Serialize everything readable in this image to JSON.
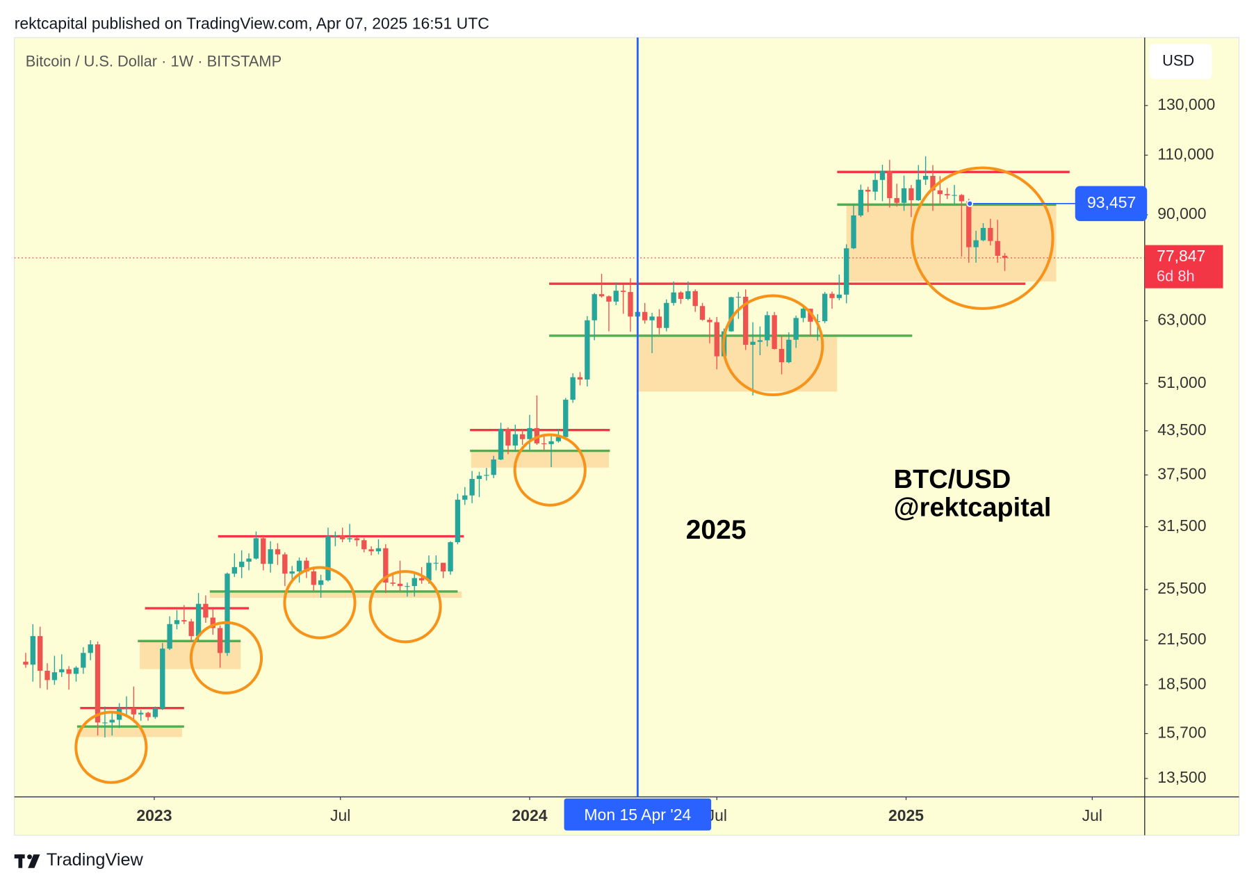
{
  "header": "rektcapital published on TradingView.com, Apr 07, 2025 16:51 UTC",
  "brand": "TradingView",
  "chart_data": {
    "type": "candlestick",
    "title": "Bitcoin / U.S. Dollar · 1W · BITSTAMP",
    "currency": "USD",
    "log_scale": true,
    "grid": false,
    "up_color": "#26a69a",
    "down_color": "#ef5350",
    "x": [
      "2022-08-29",
      "2022-09-05",
      "2022-09-12",
      "2022-09-19",
      "2022-09-26",
      "2022-10-03",
      "2022-10-10",
      "2022-10-17",
      "2022-10-24",
      "2022-10-31",
      "2022-11-07",
      "2022-11-14",
      "2022-11-21",
      "2022-11-28",
      "2022-12-05",
      "2022-12-12",
      "2022-12-19",
      "2022-12-26",
      "2023-01-02",
      "2023-01-09",
      "2023-01-16",
      "2023-01-23",
      "2023-01-30",
      "2023-02-06",
      "2023-02-13",
      "2023-02-20",
      "2023-02-27",
      "2023-03-06",
      "2023-03-13",
      "2023-03-20",
      "2023-03-27",
      "2023-04-03",
      "2023-04-10",
      "2023-04-17",
      "2023-04-24",
      "2023-05-01",
      "2023-05-08",
      "2023-05-15",
      "2023-05-22",
      "2023-05-29",
      "2023-06-05",
      "2023-06-12",
      "2023-06-19",
      "2023-06-26",
      "2023-07-03",
      "2023-07-10",
      "2023-07-17",
      "2023-07-24",
      "2023-07-31",
      "2023-08-07",
      "2023-08-14",
      "2023-08-21",
      "2023-08-28",
      "2023-09-04",
      "2023-09-11",
      "2023-09-18",
      "2023-09-25",
      "2023-10-02",
      "2023-10-09",
      "2023-10-16",
      "2023-10-23",
      "2023-10-30",
      "2023-11-06",
      "2023-11-13",
      "2023-11-20",
      "2023-11-27",
      "2023-12-04",
      "2023-12-11",
      "2023-12-18",
      "2023-12-25",
      "2024-01-01",
      "2024-01-08",
      "2024-01-15",
      "2024-01-22",
      "2024-01-29",
      "2024-02-05",
      "2024-02-12",
      "2024-02-19",
      "2024-02-26",
      "2024-03-04",
      "2024-03-11",
      "2024-03-18",
      "2024-03-25",
      "2024-04-01",
      "2024-04-08",
      "2024-04-15",
      "2024-04-22",
      "2024-04-29",
      "2024-05-06",
      "2024-05-13",
      "2024-05-20",
      "2024-05-27",
      "2024-06-03",
      "2024-06-10",
      "2024-06-17",
      "2024-06-24",
      "2024-07-01",
      "2024-07-08",
      "2024-07-15",
      "2024-07-22",
      "2024-07-29",
      "2024-08-05",
      "2024-08-12",
      "2024-08-19",
      "2024-08-26",
      "2024-09-02",
      "2024-09-09",
      "2024-09-16",
      "2024-09-23",
      "2024-09-30",
      "2024-10-07",
      "2024-10-14",
      "2024-10-21",
      "2024-10-28",
      "2024-11-04",
      "2024-11-11",
      "2024-11-18",
      "2024-11-25",
      "2024-12-02",
      "2024-12-09",
      "2024-12-16",
      "2024-12-23",
      "2024-12-30",
      "2025-01-06",
      "2025-01-13",
      "2025-01-20",
      "2025-01-27",
      "2025-02-03",
      "2025-02-10",
      "2025-02-17",
      "2025-02-24",
      "2025-03-03",
      "2025-03-10",
      "2025-03-17",
      "2025-03-24",
      "2025-03-31",
      "2025-04-07"
    ],
    "open": [
      20000,
      19800,
      21800,
      19400,
      18800,
      19300,
      19500,
      19200,
      19600,
      20600,
      21200,
      16300,
      16300,
      16450,
      17100,
      17100,
      16750,
      16840,
      16600,
      17100,
      20900,
      22700,
      23000,
      22900,
      21800,
      24300,
      23200,
      22400,
      20600,
      26900,
      27500,
      28000,
      28300,
      30300,
      27800,
      29200,
      28700,
      26900,
      27100,
      28100,
      27100,
      25900,
      26300,
      30500,
      30600,
      30200,
      30300,
      30100,
      29200,
      29000,
      29300,
      26100,
      26000,
      25800,
      25800,
      26500,
      26300,
      27900,
      27900,
      27100,
      29900,
      34500,
      35000,
      37000,
      37400,
      37500,
      39500,
      43800,
      41400,
      43000,
      42300,
      43900,
      41700,
      41600,
      42000,
      42600,
      48300,
      52100,
      51700,
      63100,
      68900,
      68400,
      67200,
      69700,
      69400,
      63900,
      64900,
      63100,
      63900,
      61500,
      66900,
      69300,
      67800,
      69600,
      66200,
      63200,
      62700,
      55900,
      60800,
      68200,
      68300,
      58100,
      58700,
      59000,
      64200,
      57300,
      54800,
      59100,
      63600,
      65600,
      62800,
      62900,
      69000,
      68000,
      68800,
      80400,
      89800,
      97900,
      97300,
      101200,
      104400,
      95200,
      93700,
      98400,
      94500,
      101300,
      102600,
      97700,
      96500,
      96100,
      96200,
      94200,
      80700,
      82600,
      86100,
      82400,
      78400
    ],
    "high": [
      20600,
      22700,
      22500,
      19900,
      20400,
      20500,
      19700,
      19700,
      21000,
      21500,
      21400,
      17200,
      16800,
      17400,
      17800,
      18400,
      17000,
      16900,
      17200,
      21300,
      23300,
      23800,
      24200,
      23100,
      25200,
      25000,
      23900,
      22600,
      27000,
      28800,
      29100,
      28800,
      31000,
      30500,
      30000,
      29800,
      28900,
      27600,
      28400,
      28400,
      27400,
      26800,
      31400,
      31000,
      31400,
      31800,
      30400,
      30300,
      29500,
      30200,
      29700,
      26800,
      28100,
      26100,
      27000,
      27500,
      28600,
      28600,
      27900,
      30000,
      35200,
      36000,
      38000,
      37900,
      38400,
      40000,
      44700,
      44000,
      44400,
      43800,
      45900,
      49000,
      43000,
      42800,
      43700,
      48600,
      52800,
      53000,
      64000,
      69200,
      73800,
      68600,
      71700,
      71200,
      72700,
      67200,
      66900,
      64700,
      65500,
      67700,
      71900,
      69600,
      71900,
      70000,
      66900,
      63700,
      63800,
      61400,
      68300,
      69400,
      70000,
      62700,
      61800,
      65000,
      64900,
      59800,
      60600,
      64100,
      66500,
      65600,
      64400,
      69400,
      69500,
      73600,
      81500,
      93400,
      99600,
      98900,
      104000,
      106500,
      108300,
      99900,
      102700,
      99500,
      106400,
      109600,
      106400,
      102500,
      98500,
      99500,
      96500,
      95000,
      85300,
      87500,
      88800,
      88500,
      79100
    ],
    "low": [
      19600,
      18700,
      18300,
      18200,
      18500,
      19000,
      18200,
      18700,
      19200,
      20100,
      15600,
      15500,
      15600,
      16000,
      16700,
      16300,
      16400,
      16400,
      16500,
      17000,
      20800,
      22300,
      22700,
      21400,
      21500,
      22800,
      21900,
      19600,
      20400,
      26600,
      26500,
      27200,
      28200,
      27200,
      27000,
      27700,
      25800,
      26300,
      26100,
      26500,
      25400,
      24800,
      26200,
      29500,
      29900,
      29900,
      29500,
      28900,
      28600,
      28700,
      25200,
      25800,
      25400,
      24900,
      24900,
      26000,
      26000,
      27200,
      26500,
      26800,
      29700,
      33900,
      34100,
      34800,
      36800,
      37100,
      39400,
      40200,
      40600,
      41500,
      40800,
      41500,
      40700,
      38500,
      41800,
      42300,
      47800,
      50700,
      50500,
      59000,
      68100,
      60800,
      66400,
      64500,
      60700,
      59600,
      62400,
      56500,
      60200,
      60800,
      66300,
      66700,
      67500,
      64900,
      63000,
      58400,
      53500,
      55700,
      60700,
      63400,
      57100,
      49000,
      56100,
      57800,
      57200,
      52600,
      54600,
      57500,
      62700,
      59800,
      58900,
      62500,
      65600,
      67500,
      66800,
      80200,
      89300,
      90800,
      94500,
      94200,
      92200,
      92500,
      91200,
      89300,
      94300,
      99500,
      91200,
      93400,
      94900,
      93400,
      78200,
      76600,
      76600,
      82300,
      81200,
      76600,
      74500
    ],
    "close": [
      19800,
      21800,
      19400,
      18800,
      19300,
      19500,
      19200,
      19600,
      20600,
      21200,
      16300,
      16300,
      16450,
      17100,
      17100,
      16750,
      16840,
      16600,
      17100,
      20900,
      22700,
      23000,
      22900,
      21800,
      24300,
      23200,
      22400,
      20600,
      26900,
      27500,
      28000,
      28300,
      30300,
      27800,
      29200,
      28700,
      26900,
      27100,
      28100,
      27100,
      25900,
      26300,
      30500,
      30600,
      30200,
      30300,
      30100,
      29200,
      29000,
      29300,
      26100,
      26000,
      25800,
      25800,
      26500,
      26300,
      27900,
      27900,
      27100,
      29900,
      34500,
      35000,
      37000,
      37400,
      37500,
      39500,
      43800,
      41400,
      43000,
      42300,
      43900,
      41700,
      41600,
      42000,
      42600,
      48300,
      52100,
      51700,
      63100,
      68900,
      68400,
      67200,
      69700,
      69400,
      63900,
      64900,
      63100,
      63900,
      61500,
      66900,
      69300,
      67800,
      69600,
      66200,
      63200,
      62700,
      55900,
      60800,
      68200,
      68300,
      58100,
      58700,
      59000,
      64200,
      57300,
      54800,
      59100,
      63600,
      65600,
      62800,
      62900,
      69000,
      68000,
      68800,
      80400,
      89800,
      97900,
      97300,
      101200,
      104400,
      95200,
      93700,
      98400,
      94500,
      101300,
      102600,
      97700,
      96500,
      96100,
      96200,
      94200,
      80700,
      82600,
      86100,
      82400,
      78400,
      77847
    ],
    "xlim": [
      "2022-08-18",
      "2025-08-21"
    ],
    "xticks": [
      {
        "value": "2023-01-01",
        "label": "2023"
      },
      {
        "value": "2023-07-01",
        "label": "Jul"
      },
      {
        "value": "2024-01-01",
        "label": "2024"
      },
      {
        "value": "2024-07-01",
        "label": "Jul"
      },
      {
        "value": "2025-01-01",
        "label": "2025"
      },
      {
        "value": "2025-07-01",
        "label": "Jul"
      }
    ],
    "ylim": [
      12690,
      163400
    ],
    "yticks": [
      {
        "value": 13500,
        "label": "13,500"
      },
      {
        "value": 15700,
        "label": "15,700"
      },
      {
        "value": 18500,
        "label": "18,500"
      },
      {
        "value": 21500,
        "label": "21,500"
      },
      {
        "value": 25500,
        "label": "25,500"
      },
      {
        "value": 31500,
        "label": "31,500"
      },
      {
        "value": 37500,
        "label": "37,500"
      },
      {
        "value": 43500,
        "label": "43,500"
      },
      {
        "value": 51000,
        "label": "51,000"
      },
      {
        "value": 63000,
        "label": "63,000"
      },
      {
        "value": 90000,
        "label": "90,000"
      },
      {
        "value": 110000,
        "label": "110,000"
      },
      {
        "value": 130000,
        "label": "130,000"
      }
    ],
    "zones": [
      {
        "low": 15520,
        "high": 16080,
        "start": "2022-10-18",
        "end": "2023-01-28",
        "color": "#fdd9a0"
      },
      {
        "low": 19510,
        "high": 21440,
        "start": "2022-12-18",
        "end": "2023-03-26",
        "color": "#fdd9a0"
      },
      {
        "low": 24800,
        "high": 25330,
        "start": "2023-02-24",
        "end": "2023-10-27",
        "color": "#fdd9a0"
      },
      {
        "low": 38430,
        "high": 40670,
        "start": "2023-11-05",
        "end": "2024-03-18",
        "color": "#fdd9a0"
      },
      {
        "low": 49630,
        "high": 59910,
        "start": "2024-04-15",
        "end": "2024-10-26",
        "color": "#fdd9a0"
      },
      {
        "low": 71920,
        "high": 93130,
        "start": "2024-11-04",
        "end": "2025-05-27",
        "color": "#fdd9a0"
      }
    ],
    "levels": [
      {
        "price": 17110,
        "start": "2022-10-21",
        "end": "2023-01-30",
        "color": "#f23645"
      },
      {
        "price": 16080,
        "start": "2022-10-18",
        "end": "2023-01-30",
        "color": "#4caf50"
      },
      {
        "price": 23940,
        "start": "2022-12-23",
        "end": "2023-04-03",
        "color": "#f23645"
      },
      {
        "price": 21440,
        "start": "2022-12-16",
        "end": "2023-03-26",
        "color": "#4caf50"
      },
      {
        "price": 30500,
        "start": "2023-03-04",
        "end": "2023-10-29",
        "color": "#f23645"
      },
      {
        "price": 25330,
        "start": "2023-02-24",
        "end": "2023-10-23",
        "color": "#4caf50"
      },
      {
        "price": 43610,
        "start": "2023-11-04",
        "end": "2024-03-19",
        "color": "#f23645"
      },
      {
        "price": 40670,
        "start": "2023-11-04",
        "end": "2024-03-19",
        "color": "#4caf50"
      },
      {
        "price": 71360,
        "start": "2024-01-20",
        "end": "2025-04-27",
        "color": "#f23645"
      },
      {
        "price": 59910,
        "start": "2024-01-20",
        "end": "2025-01-07",
        "color": "#4caf50"
      },
      {
        "price": 103960,
        "start": "2024-10-26",
        "end": "2025-06-09",
        "color": "#f23645"
      },
      {
        "price": 93130,
        "start": "2024-10-26",
        "end": "2025-05-27",
        "color": "#4caf50"
      }
    ],
    "marker_price": {
      "value": 93457,
      "label": "93,457",
      "start": "2025-03-04",
      "color": "#2962ff"
    },
    "last_price": {
      "value": 77847,
      "label": "77,847",
      "countdown": "6d 8h",
      "color": "#f23645"
    },
    "crosshair": {
      "date": "2024-04-15",
      "label": "Mon 15 Apr '24",
      "color": "#2962ff"
    },
    "annotations": [
      "2025",
      "BTC/USD",
      "@rektcapital"
    ]
  }
}
